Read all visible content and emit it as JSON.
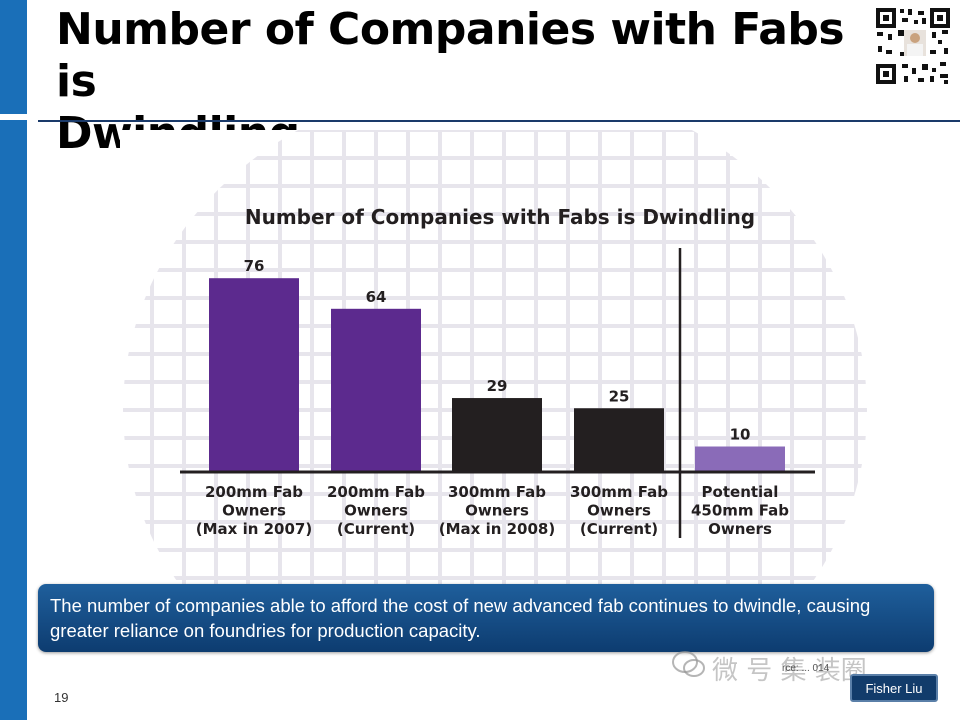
{
  "slide": {
    "title_line1": "Number of Companies with Fabs is",
    "title_line2": "Dwindling",
    "page_number": "19",
    "callout_text": "The number of companies able to afford the cost of new advanced fab continues to dwindle, causing greater reliance on foundries for production capacity.",
    "watermark_text": "微 号 集 装圈",
    "source_note": "rce: ... 014",
    "name_badge": "Fisher Liu",
    "icons": [
      "qr-code-icon",
      "wechat-icon"
    ],
    "colors": {
      "accent_blue": "#1a6fb8",
      "callout_blue": "#0d3c70"
    }
  },
  "chart_data": {
    "type": "bar",
    "title": "Number of Companies with Fabs is Dwindling",
    "categories": [
      [
        "200mm Fab",
        "Owners",
        "(Max in 2007)"
      ],
      [
        "200mm Fab",
        "Owners",
        "(Current)"
      ],
      [
        "300mm Fab",
        "Owners",
        "(Max in 2008)"
      ],
      [
        "300mm Fab",
        "Owners",
        "(Current)"
      ],
      [
        "Potential",
        "450mm Fab",
        "Owners"
      ]
    ],
    "values": [
      76,
      64,
      29,
      25,
      10
    ],
    "bar_colors": [
      "#5c2a8e",
      "#5c2a8e",
      "#231f20",
      "#231f20",
      "#8a6bb8"
    ],
    "ylim": [
      0,
      80
    ],
    "grid": false,
    "divider_after_index": 3
  }
}
